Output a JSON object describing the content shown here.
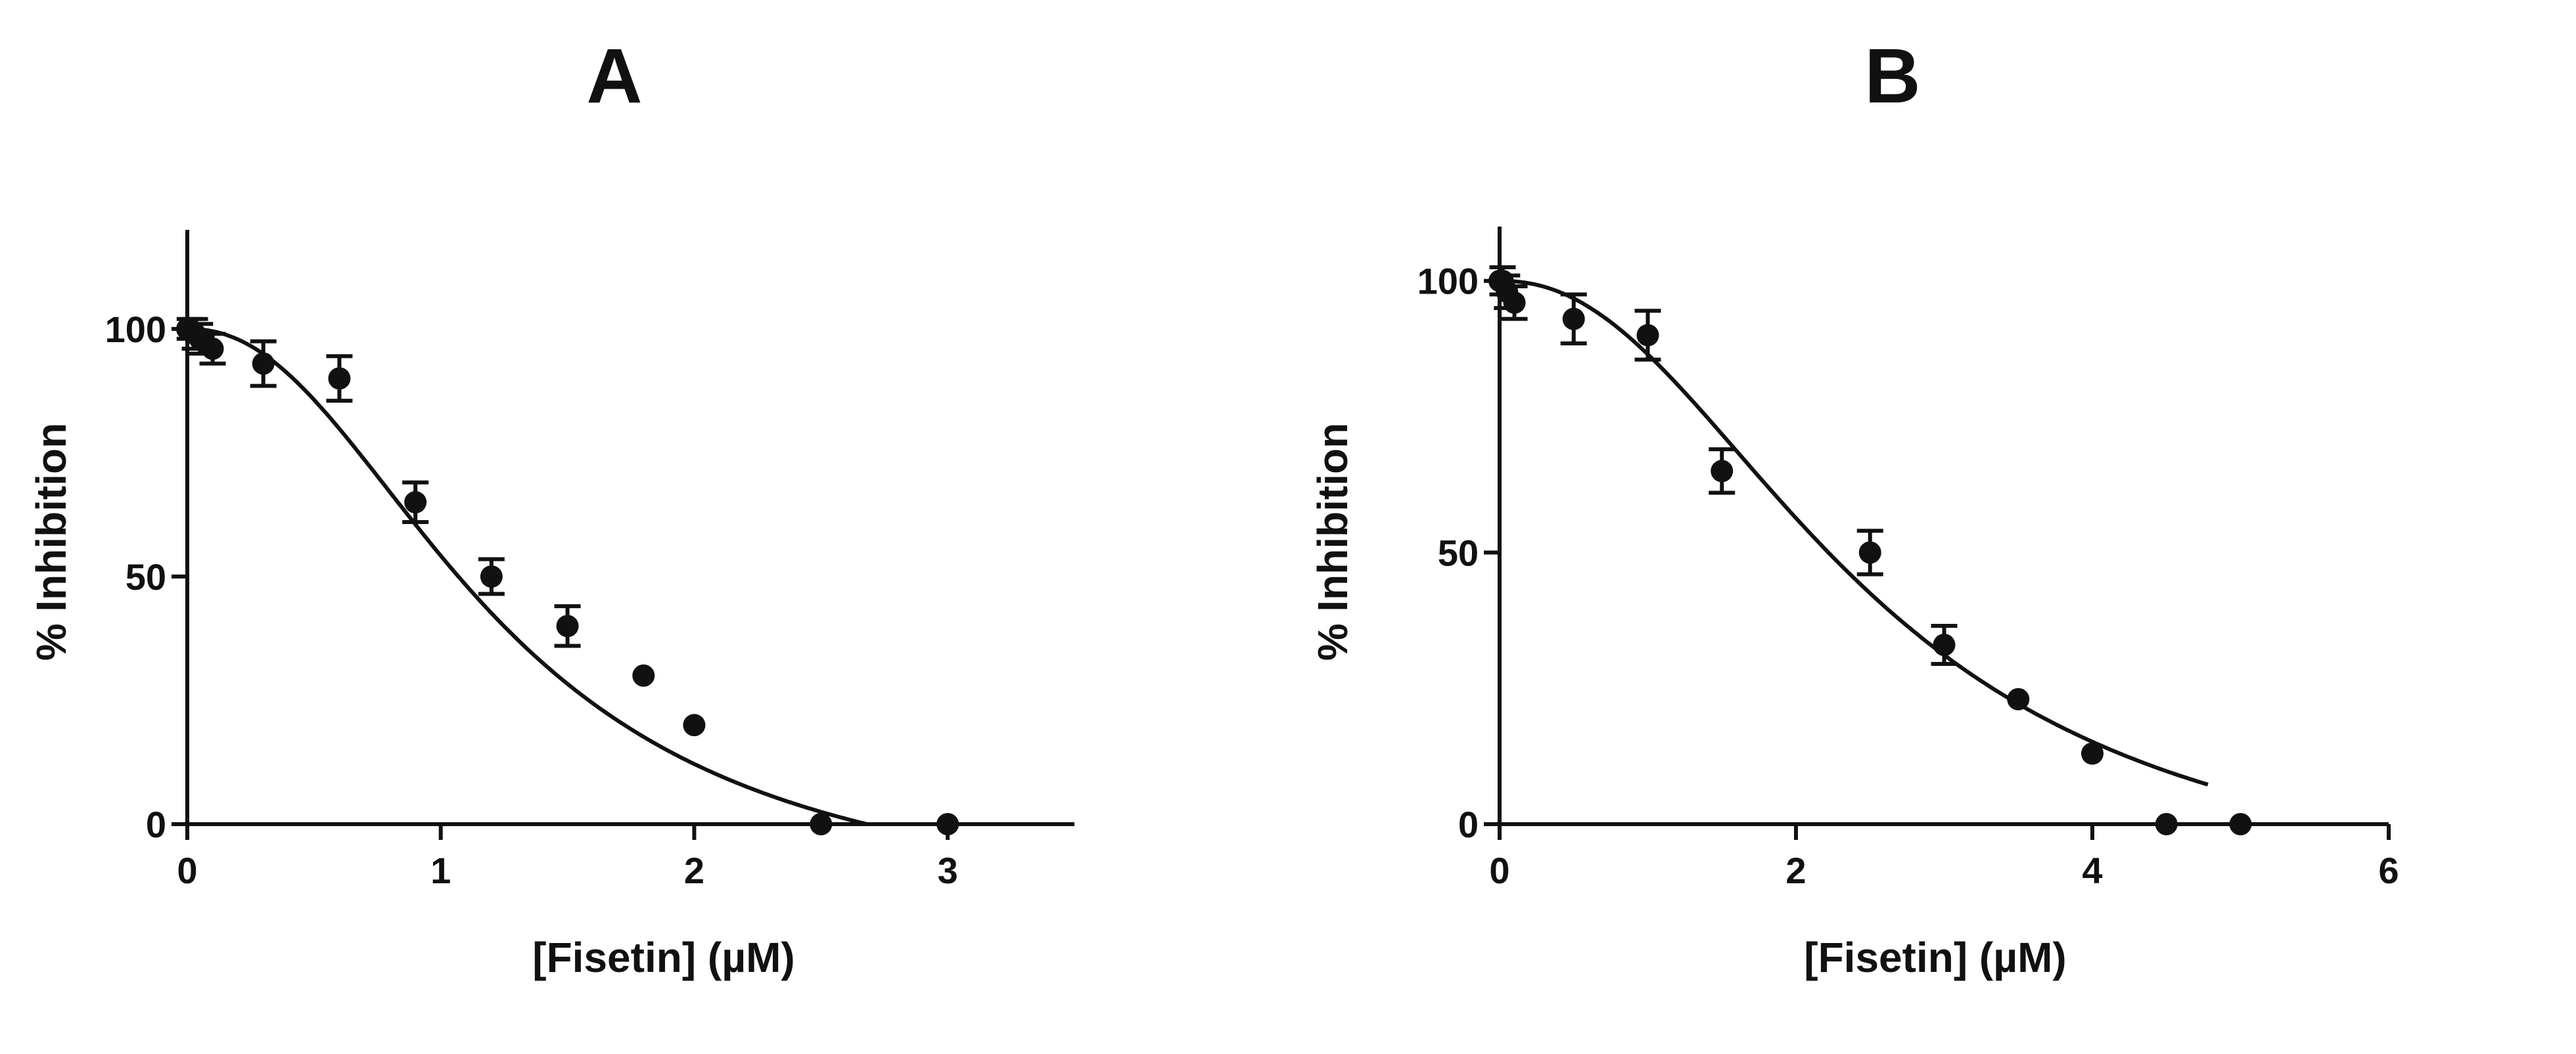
{
  "chart_data": [
    {
      "type": "scatter",
      "panel_label": "A",
      "xlabel": "[Fisetin] (µM)",
      "ylabel": "% Inhibition",
      "xlim": [
        0,
        3.5
      ],
      "ylim": [
        0,
        120
      ],
      "x_ticks": [
        0,
        1,
        2,
        3
      ],
      "y_ticks": [
        0,
        50,
        100
      ],
      "grid": false,
      "series": [
        {
          "name": "Fisetin",
          "x": [
            0,
            0.01,
            0.03,
            0.05,
            0.1,
            0.3,
            0.6,
            0.9,
            1.2,
            1.5,
            1.8,
            2.0,
            2.5,
            3.0
          ],
          "y": [
            100,
            100,
            99,
            98,
            96,
            93,
            90,
            65,
            50,
            40,
            30,
            20,
            0,
            0
          ],
          "err": [
            0,
            2,
            3,
            3,
            3,
            4.5,
            4.5,
            4,
            3.5,
            4,
            0,
            0,
            0,
            0
          ]
        }
      ],
      "fit_curve": {
        "model": "sigmoidal dose-response",
        "top": 100,
        "ic50": 1.23,
        "hill": 2.2,
        "bottom": -18,
        "x_range": [
          0,
          2.81
        ]
      }
    },
    {
      "type": "scatter",
      "panel_label": "B",
      "xlabel": "[Fisetin] (µM)",
      "ylabel": "% Inhibition",
      "xlim": [
        0,
        6
      ],
      "ylim": [
        0,
        110
      ],
      "x_ticks": [
        0,
        2,
        4,
        6
      ],
      "y_ticks": [
        0,
        50,
        100
      ],
      "grid": false,
      "series": [
        {
          "name": "Fisetin",
          "x": [
            0,
            0.02,
            0.05,
            0.1,
            0.5,
            1.0,
            1.5,
            2.5,
            3.0,
            3.5,
            4.0,
            4.5,
            5.0
          ],
          "y": [
            100,
            100,
            98,
            96,
            93,
            90,
            65,
            50,
            33,
            23,
            13,
            0,
            0
          ],
          "err": [
            0,
            2.5,
            3,
            3,
            4.5,
            4.5,
            4,
            4,
            3.5,
            0,
            0,
            0,
            0
          ]
        }
      ],
      "fit_curve": {
        "model": "sigmoidal dose-response",
        "top": 100,
        "ic50": 2.5,
        "hill": 2.2,
        "bottom": -15,
        "x_range": [
          0,
          4.78
        ]
      }
    }
  ]
}
